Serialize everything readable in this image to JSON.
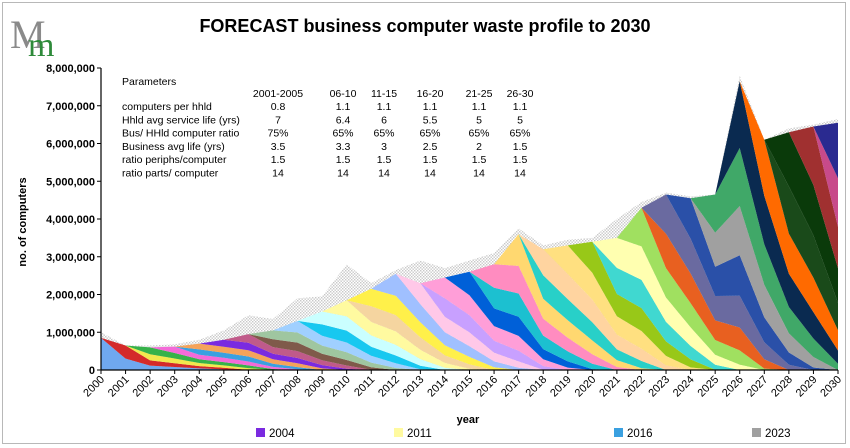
{
  "title": "FORECAST business computer waste profile to 2030",
  "colors": {
    "series": [
      "#6fa8f0",
      "#d42a2a",
      "#f2e84e",
      "#36b24a",
      "#f46ad8",
      "#3aa0e0",
      "#f5a35a",
      "#7a2ae0",
      "#c05a8a",
      "#7f5a4a",
      "#9fc6a0",
      "#a0d0ff",
      "#18c8f0",
      "#caffff",
      "#fffaa0",
      "#f5d5a0",
      "#fff04a",
      "#a0c0ff",
      "#ffc8e8",
      "#c8a0ff",
      "#ff9ed8",
      "#0060d8",
      "#1cc0d0",
      "#ff8cc0",
      "#ffd870",
      "#28d0c8",
      "#ffd4a0",
      "#ffe080",
      "#98c818",
      "#40d8d0",
      "#ffffb0",
      "#a0e060",
      "#e86020",
      "#6a6aa0",
      "#2a50a8",
      "#a0a0a0",
      "#40a868",
      "#0a2a50",
      "#ff6a00",
      "#1a4a1a",
      "#0a3a0a",
      "#a03030",
      "#c84a8a",
      "#2a2a90"
    ],
    "dotted_area": "#c8c8c8"
  },
  "chart_data": {
    "type": "area",
    "title": "FORECAST business computer waste profile to 2030",
    "xlabel": "year",
    "ylabel": "no. of computers",
    "x": [
      "2000",
      "2001",
      "2002",
      "2003",
      "2004",
      "2005",
      "2006",
      "2007",
      "2008",
      "2009",
      "2010",
      "2011",
      "2012",
      "2013",
      "2014",
      "2015",
      "2016",
      "2017",
      "2018",
      "2019",
      "2020",
      "2021",
      "2022",
      "2023",
      "2024",
      "2025",
      "2026",
      "2027",
      "2028",
      "2029",
      "2030"
    ],
    "ylim": [
      0,
      8000000
    ],
    "yticks": [
      "0",
      "1,000,000",
      "2,000,000",
      "3,000,000",
      "4,000,000",
      "5,000,000",
      "6,000,000",
      "7,000,000",
      "8,000,000"
    ],
    "total": [
      1000000,
      650000,
      650000,
      680000,
      800000,
      1050000,
      1450000,
      1350000,
      1900000,
      1950000,
      2800000,
      2300000,
      2650000,
      2900000,
      2700000,
      2900000,
      3100000,
      3750000,
      3300000,
      3450000,
      3500000,
      4000000,
      4450000,
      4700000,
      4600000,
      4650000,
      7800000,
      6100000,
      6400000,
      6500000,
      6650000
    ],
    "stack_top": [
      850000,
      650000,
      600000,
      620000,
      700000,
      800000,
      950000,
      1050000,
      1300000,
      1550000,
      1850000,
      2150000,
      2550000,
      2300000,
      2450000,
      2600000,
      2800000,
      3600000,
      3200000,
      3300000,
      3400000,
      3500000,
      4300000,
      4650000,
      4550000,
      4650000,
      7650000,
      6100000,
      6300000,
      6450000,
      6550000
    ],
    "legend": [
      "2004",
      "2011",
      "2016",
      "2023"
    ],
    "legend_colors": [
      "#7a2ae0",
      "#fffaa0",
      "#3aa0e0",
      "#a0a0a0"
    ],
    "grid": false
  },
  "parameters": {
    "heading": "Parameters",
    "columns": [
      "2001-2005",
      "06-10",
      "11-15",
      "16-20",
      "21-25",
      "26-30"
    ],
    "rows": [
      {
        "label": "computers per  hhld",
        "values": [
          "0.8",
          "1.1",
          "1.1",
          "1.1",
          "1.1",
          "1.1"
        ]
      },
      {
        "label": "Hhld avg service life (yrs)",
        "values": [
          "7",
          "6.4",
          "6",
          "5.5",
          "5",
          "5"
        ]
      },
      {
        "label": "Bus/ HHld computer ratio",
        "values": [
          "75%",
          "65%",
          "65%",
          "65%",
          "65%",
          "65%"
        ]
      },
      {
        "label": "Business avg life (yrs)",
        "values": [
          "3.5",
          "3.3",
          "3",
          "2.5",
          "2",
          "1.5"
        ]
      },
      {
        "label": "ratio periphs/computer",
        "values": [
          "1.5",
          "1.5",
          "1.5",
          "1.5",
          "1.5",
          "1.5"
        ]
      },
      {
        "label": "ratio parts/ computer",
        "values": [
          "14",
          "14",
          "14",
          "14",
          "14",
          "14"
        ]
      }
    ]
  },
  "logo_text": "Mm"
}
